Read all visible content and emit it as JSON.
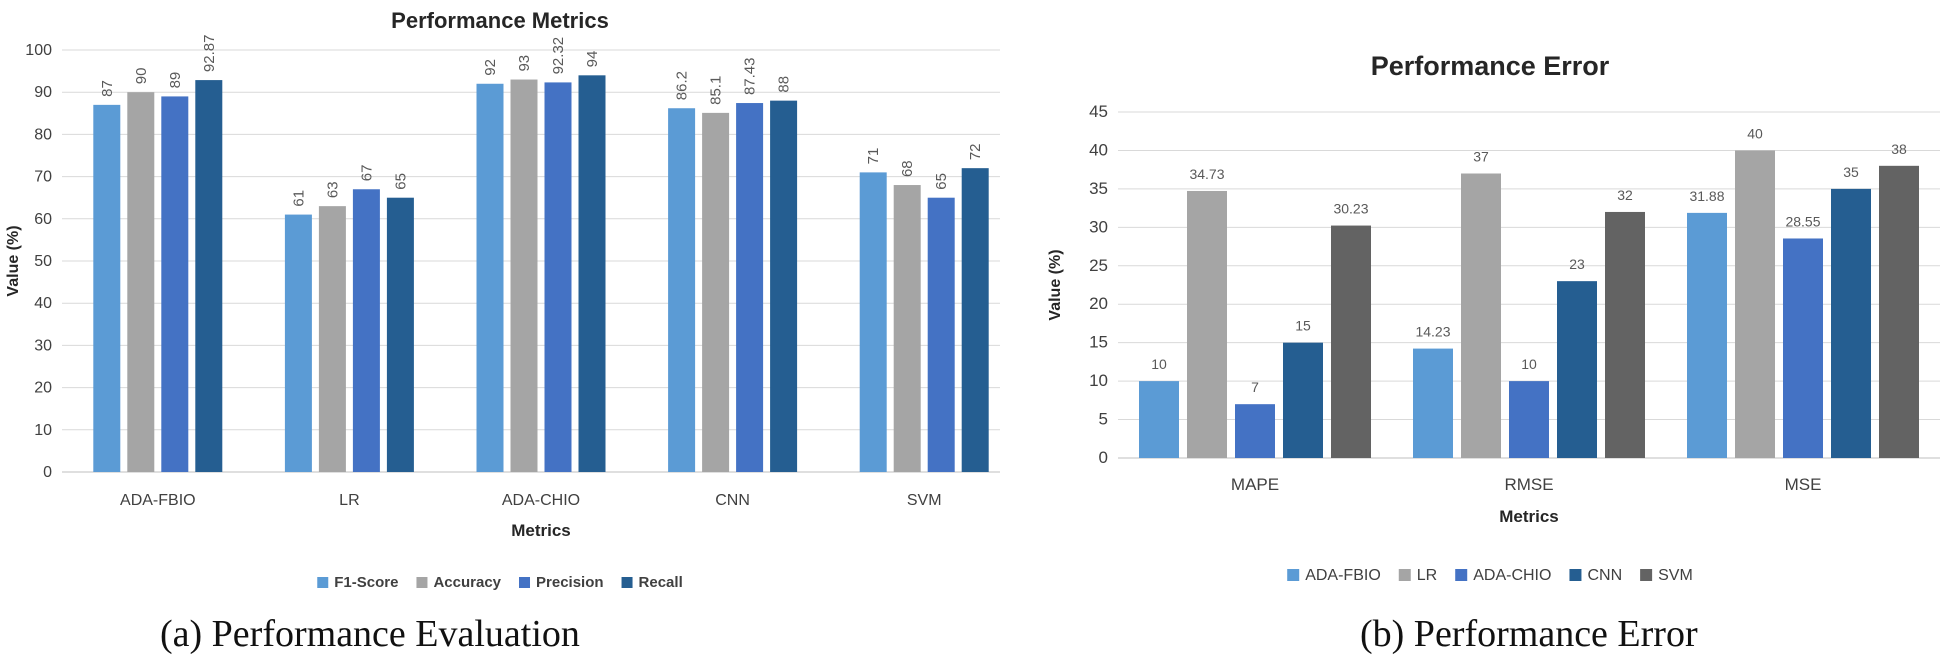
{
  "colors": {
    "ada_fbio": "#5b9bd5",
    "lr": "#a5a5a5",
    "ada_chio": "#4472c4",
    "cnn": "#255e91",
    "svm": "#636363",
    "grid": "#d9d9d9",
    "axis_text": "#404040"
  },
  "captions": {
    "a": "(a)  Performance Evaluation",
    "b": "(b) Performance Error"
  },
  "chart_data": [
    {
      "type": "bar",
      "title": "Performance Metrics",
      "xlabel": "Metrics",
      "ylabel": "Value (%)",
      "ylim": [
        0,
        100
      ],
      "ytick_step": 10,
      "grid": true,
      "legend_position": "bottom",
      "rotated_value_labels": true,
      "categories": [
        "ADA-FBIO",
        "LR",
        "ADA-CHIO",
        "CNN",
        "SVM"
      ],
      "series": [
        {
          "name": "F1-Score",
          "color": "#5b9bd5",
          "values": [
            87,
            61,
            92,
            86.2,
            71
          ],
          "labels": [
            "87",
            "61",
            "92",
            "86.2",
            "71"
          ]
        },
        {
          "name": "Accuracy",
          "color": "#a5a5a5",
          "values": [
            90,
            63,
            93,
            85.1,
            68
          ],
          "labels": [
            "90",
            "63",
            "93",
            "85.1",
            "68"
          ]
        },
        {
          "name": "Precision",
          "color": "#4472c4",
          "values": [
            89,
            67,
            92.32,
            87.43,
            65
          ],
          "labels": [
            "89",
            "67",
            "92.32",
            "87.43",
            "65"
          ]
        },
        {
          "name": "Recall",
          "color": "#255e91",
          "values": [
            92.87,
            65,
            94,
            88,
            72
          ],
          "labels": [
            "92.87",
            "65",
            "94",
            "88",
            "72"
          ]
        }
      ]
    },
    {
      "type": "bar",
      "title": "Performance Error",
      "xlabel": "Metrics",
      "ylabel": "Value (%)",
      "ylim": [
        0,
        45
      ],
      "ytick_step": 5,
      "grid": true,
      "legend_position": "bottom",
      "rotated_value_labels": false,
      "categories": [
        "MAPE",
        "RMSE",
        "MSE"
      ],
      "series": [
        {
          "name": "ADA-FBIO",
          "color": "#5b9bd5",
          "values": [
            10,
            14.23,
            31.88
          ],
          "labels": [
            "10",
            "14.23",
            "31.88"
          ]
        },
        {
          "name": "LR",
          "color": "#a5a5a5",
          "values": [
            34.73,
            37,
            40
          ],
          "labels": [
            "34.73",
            "37",
            "40"
          ]
        },
        {
          "name": "ADA-CHIO",
          "color": "#4472c4",
          "values": [
            7,
            10,
            28.55
          ],
          "labels": [
            "7",
            "10",
            "28.55"
          ]
        },
        {
          "name": "CNN",
          "color": "#255e91",
          "values": [
            15,
            23,
            35
          ],
          "labels": [
            "15",
            "23",
            "35"
          ]
        },
        {
          "name": "SVM",
          "color": "#636363",
          "values": [
            30.23,
            32,
            38
          ],
          "labels": [
            "30.23",
            "32",
            "38"
          ]
        }
      ]
    }
  ]
}
